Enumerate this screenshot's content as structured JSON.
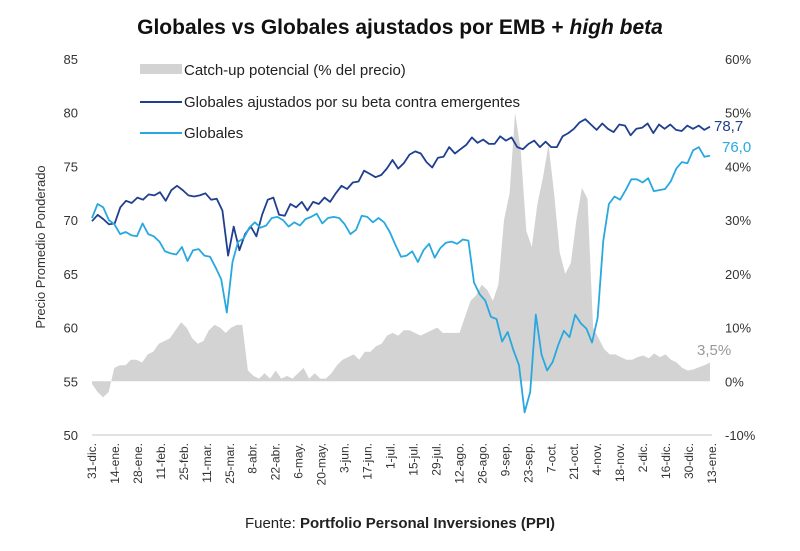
{
  "title_main": "Globales vs Globales ajustados por EMB + ",
  "title_italic": "high beta",
  "source_prefix": "Fuente: ",
  "source_name": "Portfolio Personal Inversiones (PPI)",
  "chart_data": {
    "type": "line",
    "title": "Globales vs Globales ajustados por EMB + high beta",
    "ylabel": "Precio Promedio Ponderado",
    "ylabel_right": "",
    "xlabel": "",
    "ylim": [
      50,
      85
    ],
    "ylim_right": [
      -10,
      60
    ],
    "yticks": [
      "50",
      "55",
      "60",
      "65",
      "70",
      "75",
      "80",
      "85"
    ],
    "yticks_right": [
      "-10%",
      "0%",
      "10%",
      "20%",
      "30%",
      "40%",
      "50%",
      "60%"
    ],
    "categories": [
      "31-dic.",
      "14-ene.",
      "28-ene.",
      "11-feb.",
      "25-feb.",
      "11-mar.",
      "25-mar.",
      "8-abr.",
      "22-abr.",
      "6-may.",
      "20-may.",
      "3-jun.",
      "17-jun.",
      "1-jul.",
      "15-jul.",
      "29-jul.",
      "12-ago.",
      "26-ago.",
      "9-sep.",
      "23-sep.",
      "7-oct.",
      "21-oct.",
      "4-nov.",
      "18-nov.",
      "2-dic.",
      "16-dic.",
      "30-dic.",
      "13-ene."
    ],
    "grid": false,
    "legend_position": "top-left",
    "colors": {
      "catchup": "#d3d3d3",
      "ajustados": "#1f3f8f",
      "globales": "#29a8e0",
      "catchup_label": "#999999"
    },
    "series": [
      {
        "name": "Catch-up potencial (% del precio)",
        "type": "area",
        "axis": "right",
        "values": [
          -0.5,
          -2,
          -3,
          -2,
          2.5,
          3,
          3,
          4,
          4,
          3.5,
          5,
          5.5,
          7,
          7.5,
          8,
          9.5,
          11,
          10,
          8,
          7,
          7.5,
          9.5,
          10.5,
          10,
          9,
          10,
          10.5,
          10.5,
          2,
          1,
          0.5,
          1.5,
          0.5,
          2,
          0.5,
          1,
          0.5,
          1.5,
          2.5,
          0.5,
          1.5,
          0.5,
          0.5,
          1.5,
          3,
          4,
          4.5,
          5,
          4,
          5.5,
          5.5,
          6.5,
          7,
          8.5,
          9,
          8.5,
          9.5,
          9.5,
          9,
          8.5,
          9,
          9.5,
          10,
          9,
          9,
          9,
          9,
          12,
          15,
          16,
          18,
          17,
          15,
          18,
          30,
          35,
          50,
          43,
          28,
          25,
          33,
          38,
          44,
          35,
          24,
          20,
          22,
          30,
          36,
          34,
          10,
          8,
          6,
          5,
          5,
          4.5,
          4,
          4,
          4.5,
          4.8,
          4.3,
          5.2,
          4.5,
          5,
          4,
          3.5,
          2.5,
          2,
          2.2,
          2.6,
          3,
          3.5
        ]
      },
      {
        "name": "Globales ajustados por su beta contra emergentes",
        "type": "line",
        "axis": "left",
        "values": [
          69.9,
          70.5,
          70.1,
          69.6,
          69.7,
          71.2,
          71.8,
          71.6,
          72.1,
          71.9,
          72.4,
          72.3,
          72.6,
          71.8,
          72.8,
          73.2,
          72.8,
          72.3,
          72.2,
          72.3,
          72.5,
          71.9,
          72,
          70.9,
          66.7,
          69.4,
          67.2,
          68.7,
          69.4,
          68.5,
          70.5,
          71.9,
          72.1,
          70.5,
          70.4,
          71.5,
          71.2,
          71.7,
          70.9,
          71.7,
          71.5,
          72.1,
          71.7,
          72.5,
          73.2,
          72.9,
          73.5,
          73.6,
          74.6,
          74.3,
          74,
          74.2,
          74.8,
          75.6,
          74.8,
          75.3,
          76.1,
          76.4,
          76.2,
          75.4,
          74.9,
          75.8,
          75.9,
          76.8,
          76.2,
          76.6,
          77,
          77.7,
          77.2,
          77.5,
          77.1,
          77.1,
          77.8,
          77.4,
          77.7,
          76.8,
          76.6,
          77.1,
          77.4,
          76.8,
          77.3,
          76.8,
          76.8,
          77.8,
          78.1,
          78.5,
          79.1,
          79.4,
          78.9,
          78.4,
          79,
          78.5,
          78.2,
          78.9,
          78.8,
          77.9,
          78.5,
          78.6,
          79,
          78.1,
          78.9,
          78.5,
          78.9,
          78.4,
          78.3,
          78.8,
          78.5,
          78.8,
          78.4,
          78.7
        ]
      },
      {
        "name": "Globales",
        "type": "line",
        "axis": "left",
        "values": [
          70.2,
          71.5,
          71.2,
          70,
          69.6,
          68.7,
          68.9,
          68.6,
          68.5,
          69.7,
          68.7,
          68.5,
          68,
          67.1,
          66.9,
          66.8,
          67.5,
          66.2,
          67.2,
          67.3,
          66.7,
          66.6,
          65.6,
          64.5,
          61.4,
          66.1,
          68,
          68.3,
          69.3,
          69.8,
          69.3,
          69.5,
          70.2,
          70.3,
          70,
          69.4,
          69.8,
          69.5,
          70.1,
          70.3,
          70.6,
          69.7,
          70.2,
          70.3,
          70.2,
          69.6,
          68.7,
          69.1,
          70.4,
          70.3,
          69.8,
          70.2,
          69.8,
          68.9,
          67.7,
          66.6,
          66.7,
          67.1,
          66.1,
          67.2,
          67.8,
          66.5,
          67.4,
          67.9,
          68,
          67.8,
          68.2,
          68.1,
          64.2,
          63.1,
          62.5,
          61,
          60.8,
          58.7,
          59.6,
          57.9,
          56.5,
          52.1,
          54,
          61.2,
          57.5,
          56,
          56.8,
          58.4,
          59.7,
          59.1,
          61.2,
          60.4,
          59.9,
          58.6,
          60.9,
          68.1,
          71.5,
          72.2,
          71.9,
          72.8,
          73.8,
          73.8,
          73.5,
          73.9,
          72.7,
          72.8,
          72.9,
          73.6,
          74.8,
          75.4,
          75.3,
          76.5,
          76.8,
          75.9,
          76.0
        ]
      }
    ],
    "annotations": [
      {
        "text": "78,7",
        "series": "Globales ajustados por su beta contra emergentes"
      },
      {
        "text": "76,0",
        "series": "Globales"
      },
      {
        "text": "3,5%",
        "series": "Catch-up potencial (% del precio)"
      }
    ]
  }
}
